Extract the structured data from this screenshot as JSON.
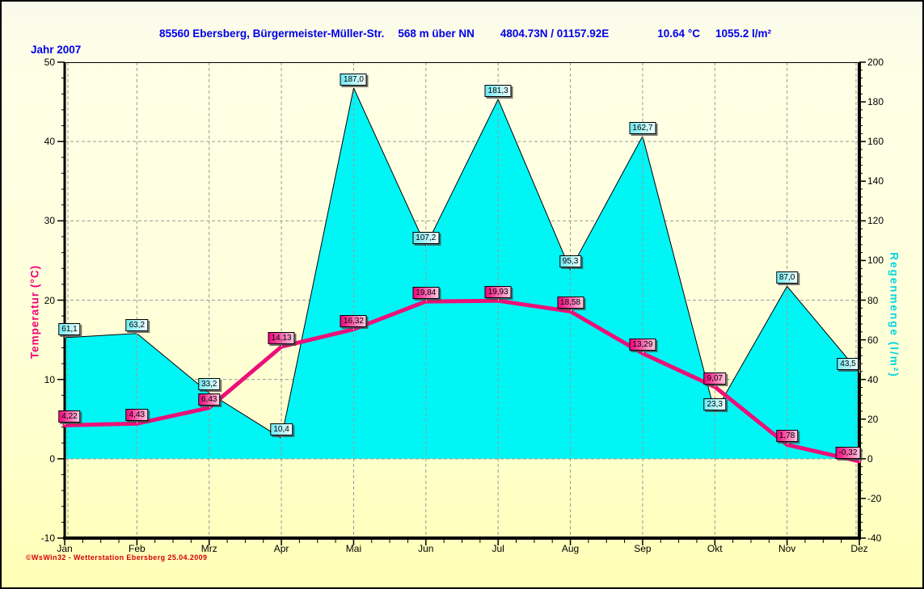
{
  "window": {
    "title_parts": {
      "station": "85560 Ebersberg, Bürgermeister-Müller-Str.",
      "elevation": "568 m über NN",
      "coordinates": "4804.73N / 01157.92E",
      "avg_temp": "10.64 °C",
      "total_rain": "1055.2 l/m²"
    },
    "year_label": "Jahr 2007",
    "copyright": "©WsWin32 - Wetterstation Ebersberg  25.04.2009"
  },
  "chart_data": {
    "type": "area+line",
    "title": "85560 Ebersberg, Bürgermeister-Müller-Str. — Jahr 2007",
    "categories": [
      "Jan",
      "Feb",
      "Mrz",
      "Apr",
      "Mai",
      "Jun",
      "Jul",
      "Aug",
      "Sep",
      "Okt",
      "Nov",
      "Dez"
    ],
    "series": [
      {
        "name": "Regenmenge",
        "type": "area",
        "axis": "right",
        "color": "#00F5F5",
        "outline_color": "#000000",
        "values": [
          61.1,
          63.2,
          33.2,
          10.4,
          187.0,
          107.2,
          181.3,
          95.3,
          162.7,
          23.3,
          87.0,
          43.5
        ],
        "labels": [
          "61,1",
          "63,2",
          "33,2",
          "10,4",
          "187,0",
          "107,2",
          "181,3",
          "95,3",
          "162,7",
          "23,3",
          "87,0",
          "43,5"
        ]
      },
      {
        "name": "Temperatur",
        "type": "line",
        "axis": "left",
        "color": "#EC1078",
        "values": [
          4.22,
          4.43,
          6.43,
          14.13,
          16.32,
          19.84,
          19.93,
          18.58,
          13.29,
          9.07,
          1.78,
          -0.32
        ],
        "labels": [
          "4,22",
          "4,43",
          "6,43",
          "14,13",
          "16,32",
          "19,84",
          "19,93",
          "18,58",
          "13,29",
          "9,07",
          "1,78",
          "-0,32"
        ]
      }
    ],
    "left_axis": {
      "title": "Temperatur  (°C)",
      "min": -10,
      "max": 50,
      "tick_step": 10,
      "minor_step": 2,
      "ticks": [
        50,
        40,
        30,
        20,
        10,
        0,
        -10
      ],
      "color": "#F00078"
    },
    "right_axis": {
      "title": "Regenmenge  (l/m²)",
      "min": -40,
      "max": 200,
      "tick_step": 20,
      "minor_step": 4,
      "ticks": [
        200,
        180,
        160,
        140,
        120,
        100,
        80,
        60,
        40,
        20,
        0,
        -20,
        -40
      ],
      "color": "#00D6E2"
    },
    "grid": {
      "horizontal_at_left_ticks": [
        40,
        30,
        20,
        10,
        0
      ],
      "vertical_at_categories": true,
      "style": "dashed"
    }
  }
}
